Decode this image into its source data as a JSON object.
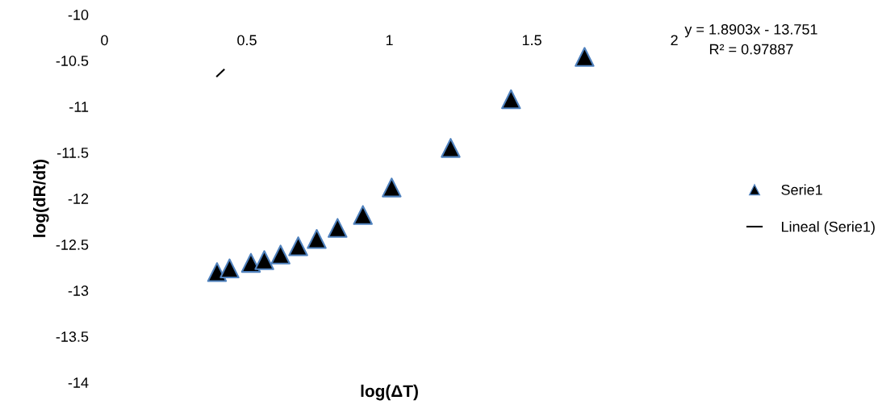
{
  "chart_data": {
    "type": "scatter",
    "xlabel": "log(ΔT)",
    "ylabel": "log(dR/dt)",
    "series": [
      {
        "name": "Serie1",
        "color": "#000000",
        "marker": "triangle",
        "x": [
          0.395,
          0.439,
          0.514,
          0.561,
          0.618,
          0.68,
          0.745,
          0.818,
          0.907,
          1.008,
          1.215,
          1.427,
          1.685
        ],
        "values": [
          -12.8,
          -12.76,
          -12.7,
          -12.67,
          -12.61,
          -12.52,
          -12.44,
          -12.32,
          -12.18,
          -11.88,
          -11.45,
          -10.92,
          -10.46
        ]
      },
      {
        "name": "Lineal (Serie1)",
        "type": "line",
        "color": "#000000",
        "marker": "none",
        "line_style": "solid",
        "x": [
          0.395,
          0.419
        ],
        "values": [
          -10.67,
          -10.6
        ]
      }
    ],
    "xlim": [
      0,
      2
    ],
    "xticks": [
      0,
      0.5,
      1,
      1.5,
      2
    ],
    "ylim": [
      -14,
      -10
    ],
    "yticks": [
      -14,
      -13.5,
      -13,
      -12.5,
      -12,
      -11.5,
      -11,
      -10.5,
      -10
    ],
    "grid": false,
    "legend": "right",
    "annotations": [
      "y = 1.8903x - 13.751\nR² = 0.97887"
    ]
  }
}
